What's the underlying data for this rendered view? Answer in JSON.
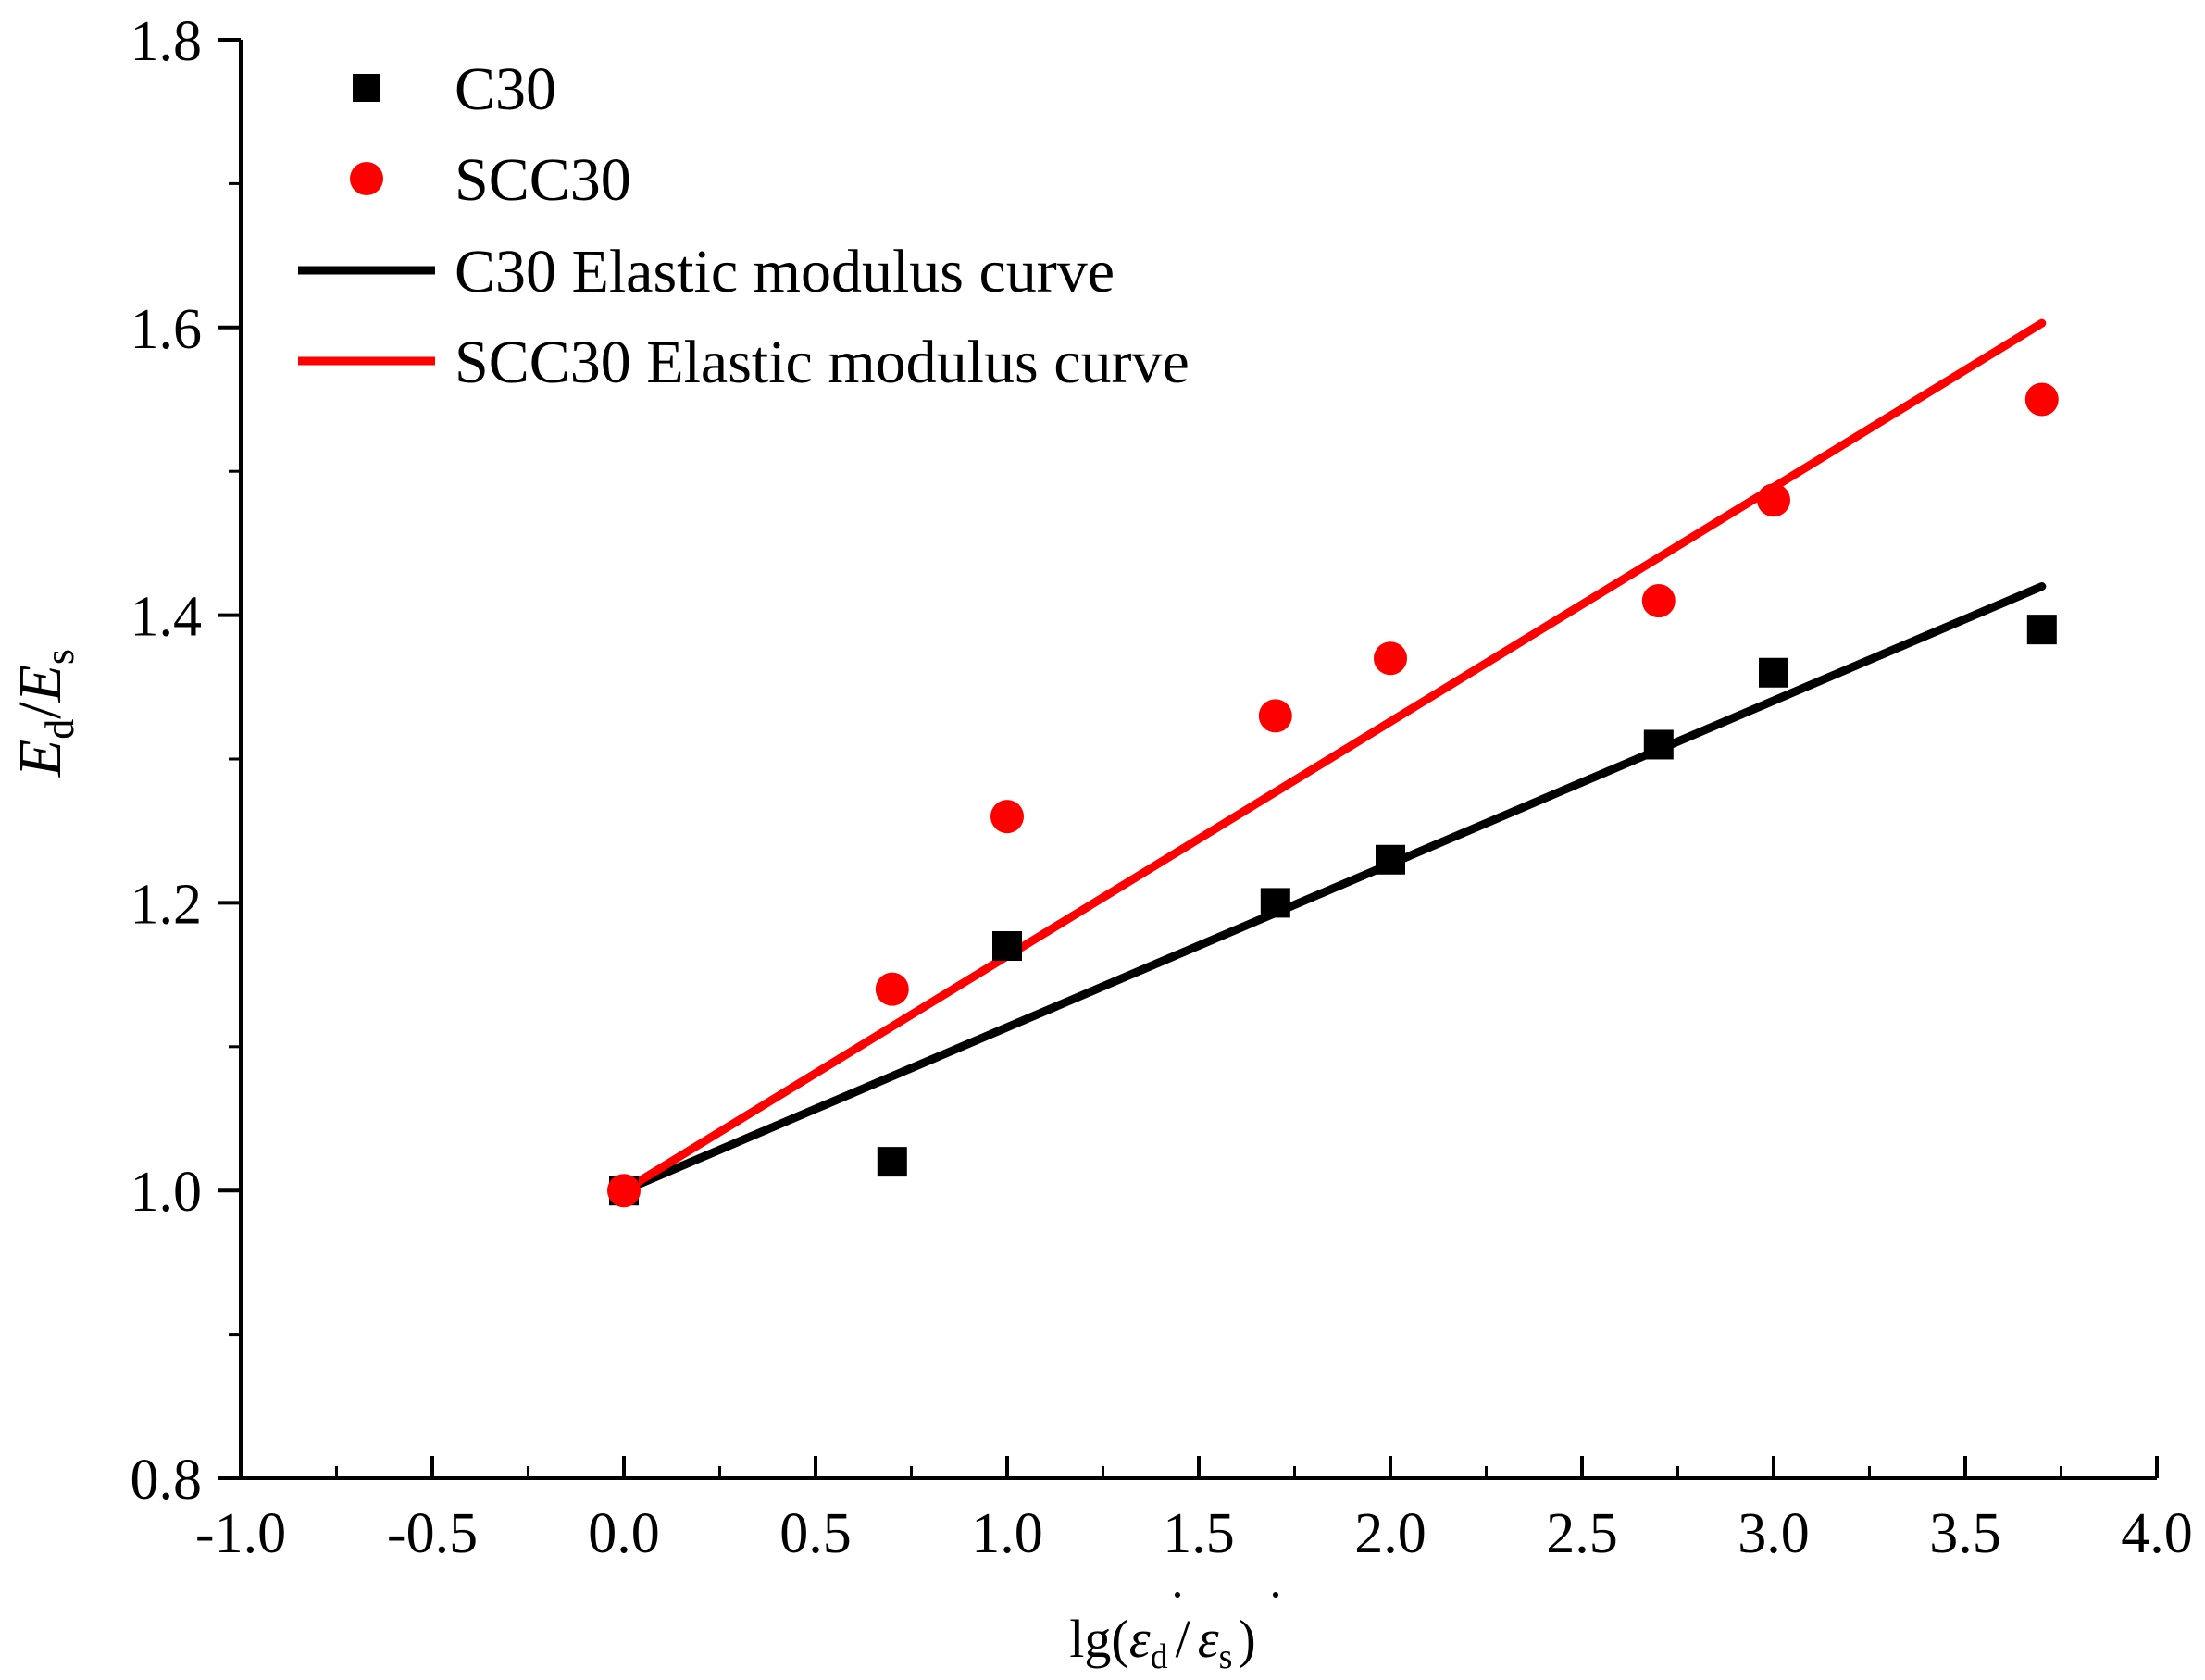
{
  "chart_data": {
    "type": "scatter",
    "title": "",
    "xlabel": {
      "prefix": "lg(",
      "num_symbol": "ε",
      "num_sub": "d",
      "slash": "/",
      "den_symbol": "ε",
      "den_sub": "s",
      "suffix": ")"
    },
    "ylabel": {
      "num_symbol": "E",
      "num_sub": "d",
      "slash": "/",
      "den_symbol": "E",
      "den_sub": "s"
    },
    "xlim": [
      -1.0,
      4.0
    ],
    "ylim": [
      0.8,
      1.8
    ],
    "x_ticks": [
      -1.0,
      -0.5,
      0.0,
      0.5,
      1.0,
      1.5,
      2.0,
      2.5,
      3.0,
      3.5,
      4.0
    ],
    "x_tick_labels": [
      "-1.0",
      "-0.5",
      "0.0",
      "0.5",
      "1.0",
      "1.5",
      "2.0",
      "2.5",
      "3.0",
      "3.5",
      "4.0"
    ],
    "y_ticks": [
      0.8,
      1.0,
      1.2,
      1.4,
      1.6,
      1.8
    ],
    "y_tick_labels": [
      "0.8",
      "1.0",
      "1.2",
      "1.4",
      "1.6",
      "1.8"
    ],
    "grid": false,
    "legend_position": "top-left",
    "series": [
      {
        "name": "C30",
        "kind": "scatter",
        "marker": "square",
        "color": "#000000",
        "x": [
          0.0,
          0.7,
          1.0,
          1.7,
          2.0,
          2.7,
          3.0,
          3.7
        ],
        "y": [
          1.0,
          1.02,
          1.17,
          1.2,
          1.23,
          1.31,
          1.36,
          1.39
        ]
      },
      {
        "name": "SCC30",
        "kind": "scatter",
        "marker": "circle",
        "color": "#ff0000",
        "x": [
          0.0,
          0.7,
          1.0,
          1.7,
          2.0,
          2.7,
          3.0,
          3.7
        ],
        "y": [
          1.0,
          1.14,
          1.26,
          1.33,
          1.37,
          1.41,
          1.48,
          1.55
        ]
      },
      {
        "name": "C30 Elastic modulus curve",
        "kind": "line",
        "color": "#000000",
        "x": [
          0.0,
          3.7
        ],
        "y": [
          1.0,
          1.42
        ]
      },
      {
        "name": "SCC30 Elastic modulus curve",
        "kind": "line",
        "color": "#ff0000",
        "x": [
          0.0,
          3.7
        ],
        "y": [
          1.0,
          1.603
        ]
      }
    ]
  }
}
